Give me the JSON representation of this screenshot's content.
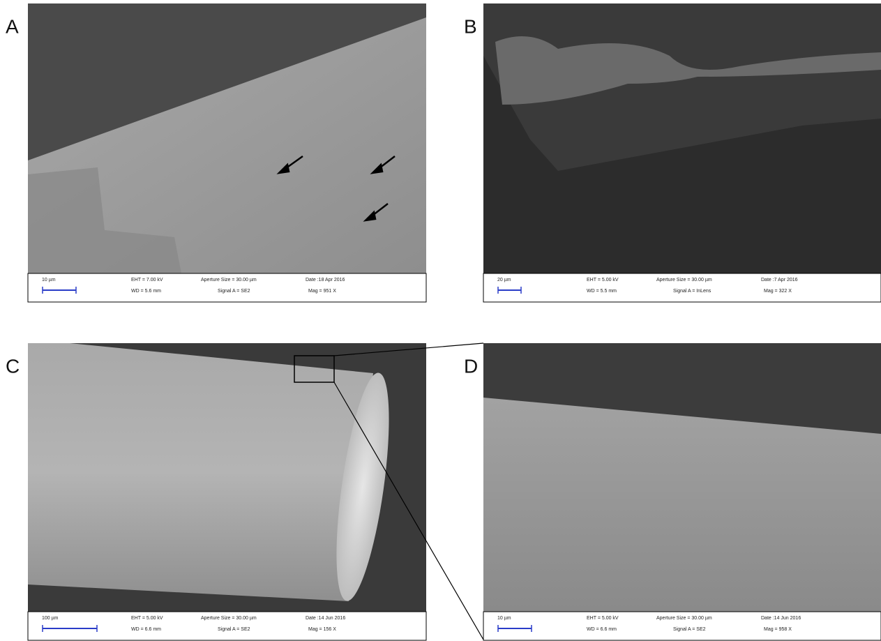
{
  "panels": [
    {
      "label": "A",
      "scale_bar": "10 µm",
      "eht": "EHT =  7.00 kV",
      "wd": "WD =  5.6 mm",
      "aperture": "Aperture Size = 30.00 µm",
      "signal": "Signal A = SE2",
      "date": "Date :18 Apr 2016",
      "mag": "Mag =   951 X"
    },
    {
      "label": "B",
      "scale_bar": "20 µm",
      "eht": "EHT =  5.00 kV",
      "wd": "WD =  5.5 mm",
      "aperture": "Aperture Size = 30.00 µm",
      "signal": "Signal A = InLens",
      "date": "Date :7 Apr 2016",
      "mag": "Mag =   322 X"
    },
    {
      "label": "C",
      "scale_bar": "100 µm",
      "eht": "EHT =  5.00 kV",
      "wd": "WD =  6.6 mm",
      "aperture": "Aperture Size = 30.00 µm",
      "signal": "Signal A = SE2",
      "date": "Date :14 Jun 2016",
      "mag": "Mag =   156 X"
    },
    {
      "label": "D",
      "scale_bar": "10 µm",
      "eht": "EHT =  5.00 kV",
      "wd": "WD =  6.6 mm",
      "aperture": "Aperture Size = 30.00 µm",
      "signal": "Signal A = SE2",
      "date": "Date :14 Jun 2016",
      "mag": "Mag =   958 X"
    }
  ]
}
